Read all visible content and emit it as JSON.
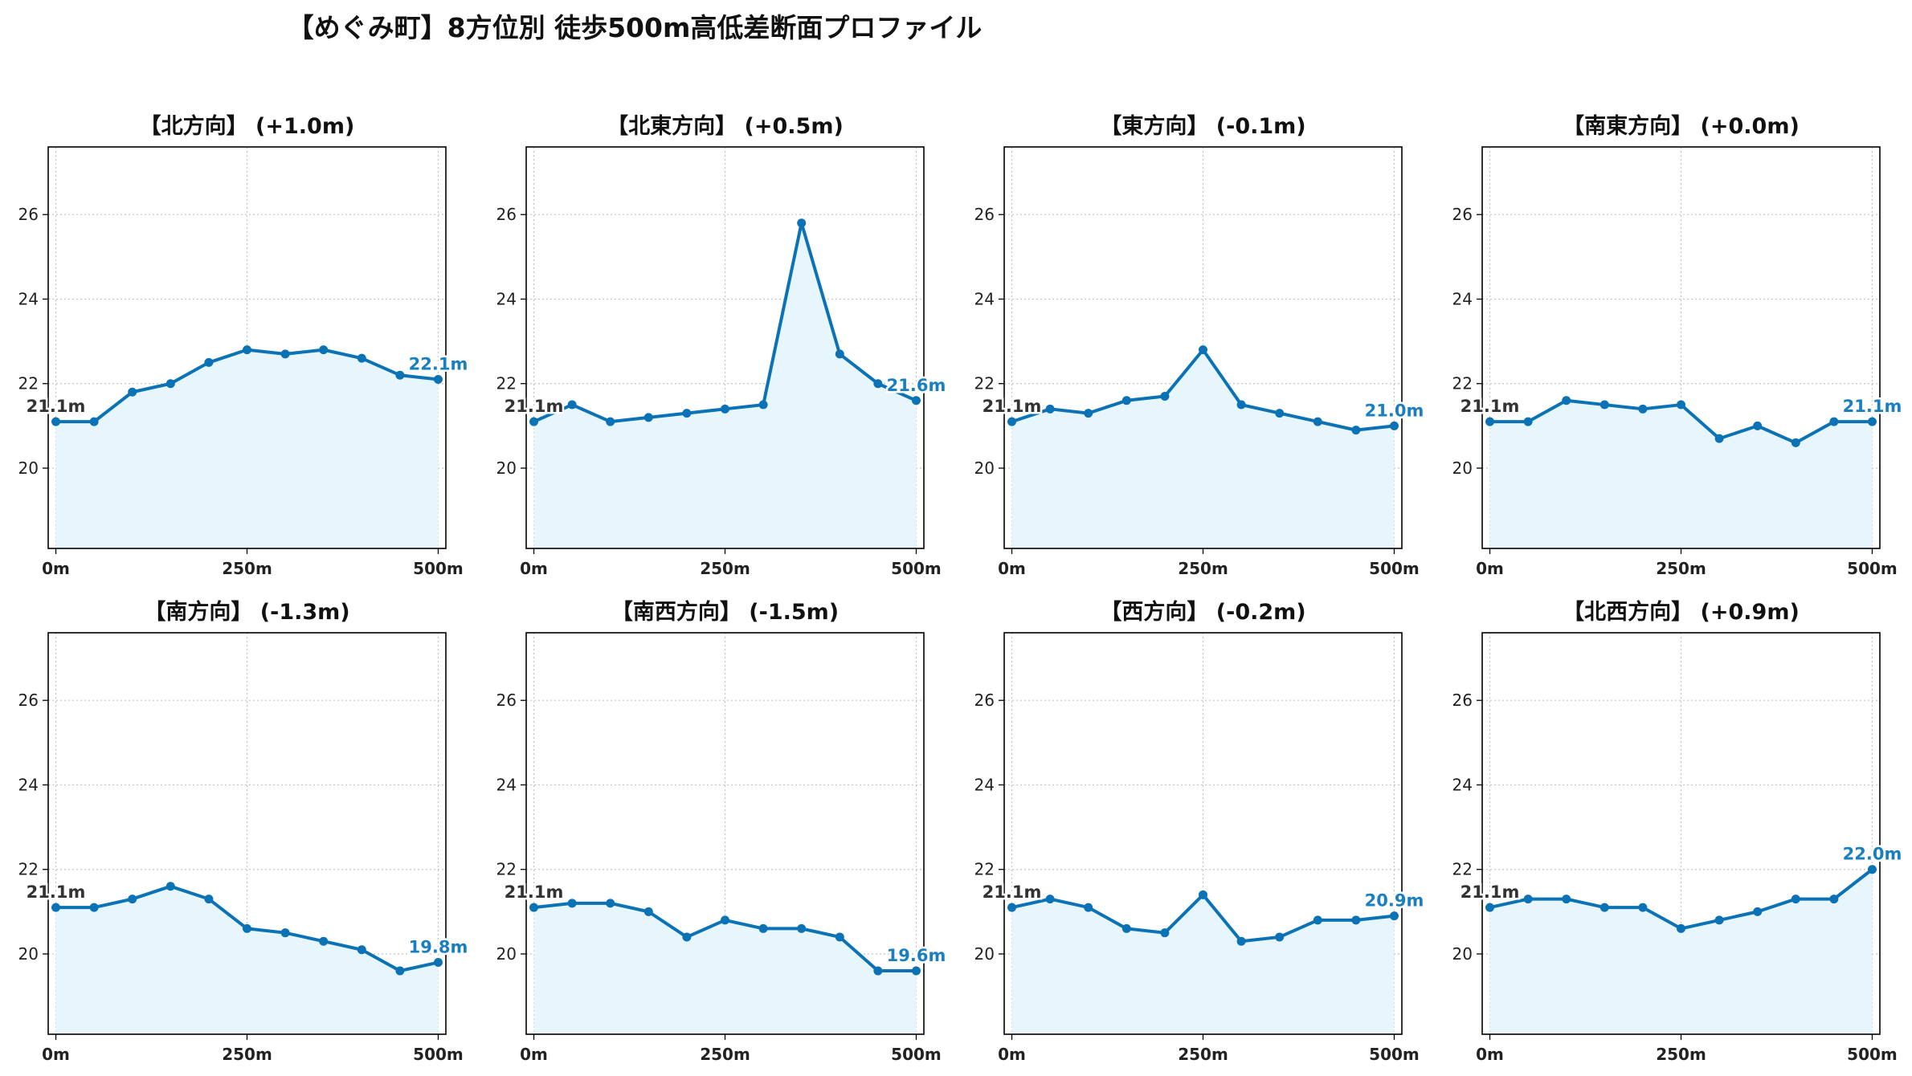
{
  "title": "【めぐみ町】8方位別 徒歩500m高低差断面プロファイル",
  "colors": {
    "line": "#0a72b5",
    "fill": "#e6f6fc",
    "grid": "#c4c4c4",
    "end_label": "#1a7fc1",
    "start_label": "#333333"
  },
  "chart_data": [
    {
      "type": "area",
      "title": "【北方向】 (+1.0m)",
      "x": [
        0,
        50,
        100,
        150,
        200,
        250,
        300,
        350,
        400,
        450,
        500
      ],
      "y": [
        21.1,
        21.1,
        21.8,
        22.0,
        22.5,
        22.8,
        22.7,
        22.8,
        22.6,
        22.2,
        22.1
      ],
      "xticks": [
        "0m",
        "250m",
        "500m"
      ],
      "yticks": [
        "20",
        "22",
        "24",
        "26"
      ],
      "ylim": [
        18.1,
        27.6
      ],
      "xlim": [
        -10,
        510
      ],
      "start_label": "21.1m",
      "end_label": "22.1m",
      "grid": true
    },
    {
      "type": "area",
      "title": "【北東方向】 (+0.5m)",
      "x": [
        0,
        50,
        100,
        150,
        200,
        250,
        300,
        350,
        400,
        450,
        500
      ],
      "y": [
        21.1,
        21.5,
        21.1,
        21.2,
        21.3,
        21.4,
        21.5,
        25.8,
        22.7,
        22.0,
        21.6
      ],
      "xticks": [
        "0m",
        "250m",
        "500m"
      ],
      "yticks": [
        "20",
        "22",
        "24",
        "26"
      ],
      "ylim": [
        18.1,
        27.6
      ],
      "xlim": [
        -10,
        510
      ],
      "start_label": "21.1m",
      "end_label": "21.6m",
      "grid": true
    },
    {
      "type": "area",
      "title": "【東方向】 (-0.1m)",
      "x": [
        0,
        50,
        100,
        150,
        200,
        250,
        300,
        350,
        400,
        450,
        500
      ],
      "y": [
        21.1,
        21.4,
        21.3,
        21.6,
        21.7,
        22.8,
        21.5,
        21.3,
        21.1,
        20.9,
        21.0
      ],
      "xticks": [
        "0m",
        "250m",
        "500m"
      ],
      "yticks": [
        "20",
        "22",
        "24",
        "26"
      ],
      "ylim": [
        18.1,
        27.6
      ],
      "xlim": [
        -10,
        510
      ],
      "start_label": "21.1m",
      "end_label": "21.0m",
      "grid": true
    },
    {
      "type": "area",
      "title": "【南東方向】 (+0.0m)",
      "x": [
        0,
        50,
        100,
        150,
        200,
        250,
        300,
        350,
        400,
        450,
        500
      ],
      "y": [
        21.1,
        21.1,
        21.6,
        21.5,
        21.4,
        21.5,
        20.7,
        21.0,
        20.6,
        21.1,
        21.1
      ],
      "xticks": [
        "0m",
        "250m",
        "500m"
      ],
      "yticks": [
        "20",
        "22",
        "24",
        "26"
      ],
      "ylim": [
        18.1,
        27.6
      ],
      "xlim": [
        -10,
        510
      ],
      "start_label": "21.1m",
      "end_label": "21.1m",
      "grid": true
    },
    {
      "type": "area",
      "title": "【南方向】 (-1.3m)",
      "x": [
        0,
        50,
        100,
        150,
        200,
        250,
        300,
        350,
        400,
        450,
        500
      ],
      "y": [
        21.1,
        21.1,
        21.3,
        21.6,
        21.3,
        20.6,
        20.5,
        20.3,
        20.1,
        19.6,
        19.8
      ],
      "xticks": [
        "0m",
        "250m",
        "500m"
      ],
      "yticks": [
        "20",
        "22",
        "24",
        "26"
      ],
      "ylim": [
        18.1,
        27.6
      ],
      "xlim": [
        -10,
        510
      ],
      "start_label": "21.1m",
      "end_label": "19.8m",
      "grid": true
    },
    {
      "type": "area",
      "title": "【南西方向】 (-1.5m)",
      "x": [
        0,
        50,
        100,
        150,
        200,
        250,
        300,
        350,
        400,
        450,
        500
      ],
      "y": [
        21.1,
        21.2,
        21.2,
        21.0,
        20.4,
        20.8,
        20.6,
        20.6,
        20.4,
        19.6,
        19.6
      ],
      "xticks": [
        "0m",
        "250m",
        "500m"
      ],
      "yticks": [
        "20",
        "22",
        "24",
        "26"
      ],
      "ylim": [
        18.1,
        27.6
      ],
      "xlim": [
        -10,
        510
      ],
      "start_label": "21.1m",
      "end_label": "19.6m",
      "grid": true
    },
    {
      "type": "area",
      "title": "【西方向】 (-0.2m)",
      "x": [
        0,
        50,
        100,
        150,
        200,
        250,
        300,
        350,
        400,
        450,
        500
      ],
      "y": [
        21.1,
        21.3,
        21.1,
        20.6,
        20.5,
        21.4,
        20.3,
        20.4,
        20.8,
        20.8,
        20.9
      ],
      "xticks": [
        "0m",
        "250m",
        "500m"
      ],
      "yticks": [
        "20",
        "22",
        "24",
        "26"
      ],
      "ylim": [
        18.1,
        27.6
      ],
      "xlim": [
        -10,
        510
      ],
      "start_label": "21.1m",
      "end_label": "20.9m",
      "grid": true
    },
    {
      "type": "area",
      "title": "【北西方向】 (+0.9m)",
      "x": [
        0,
        50,
        100,
        150,
        200,
        250,
        300,
        350,
        400,
        450,
        500
      ],
      "y": [
        21.1,
        21.3,
        21.3,
        21.1,
        21.1,
        20.6,
        20.8,
        21.0,
        21.3,
        21.3,
        22.0
      ],
      "xticks": [
        "0m",
        "250m",
        "500m"
      ],
      "yticks": [
        "20",
        "22",
        "24",
        "26"
      ],
      "ylim": [
        18.1,
        27.6
      ],
      "xlim": [
        -10,
        510
      ],
      "start_label": "21.1m",
      "end_label": "22.0m",
      "grid": true
    }
  ]
}
